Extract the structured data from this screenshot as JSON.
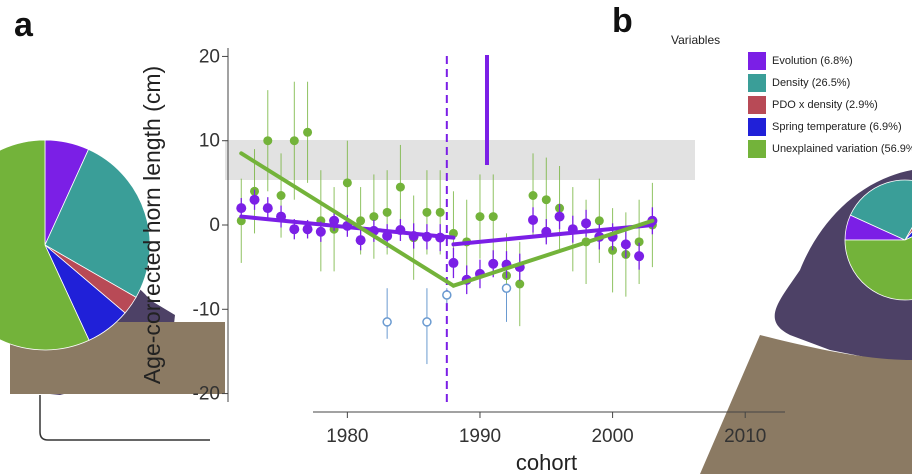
{
  "panel_labels": {
    "a": "a",
    "b": "b"
  },
  "legend": {
    "title": "Variables",
    "items": [
      {
        "label": "Evolution (6.8%)",
        "color": "#7b1fe6"
      },
      {
        "label": "Density (26.5%)",
        "color": "#3a9e98"
      },
      {
        "label": "PDO x density (2.9%)",
        "color": "#b84a56"
      },
      {
        "label": "Spring temperature (6.9%)",
        "color": "#2020d8"
      },
      {
        "label": "Unexplained variation (56.9%)",
        "color": "#73b33a"
      }
    ]
  },
  "chart_data": {
    "type": "scatter",
    "title": "",
    "xlabel": "cohort",
    "ylabel": "Age-corrected horn length (cm)",
    "xlim": [
      1971,
      2013
    ],
    "ylim": [
      -21,
      21
    ],
    "x_ticks": [
      1980,
      1990,
      2000,
      2010
    ],
    "y_ticks": [
      20,
      10,
      0,
      -10,
      -20
    ],
    "x_tick_labels": [
      "1980",
      "1990",
      "2000",
      "2010"
    ],
    "y_tick_labels": [
      "20",
      "10",
      "0",
      "-10",
      "-20"
    ],
    "legend_position": "top-right",
    "grid": false,
    "colors": {
      "evolution": "#7b1fe6",
      "phenotype": "#73b33a",
      "selection": "#6a9ad0",
      "break_line": "#7b1fe6"
    },
    "series": [
      {
        "name": "Evolution",
        "color": "#7b1fe6",
        "points": [
          [
            1972,
            2,
            1.2
          ],
          [
            1973,
            3,
            1.2
          ],
          [
            1974,
            2,
            1.3
          ],
          [
            1975,
            1,
            1.3
          ],
          [
            1976,
            -0.5,
            1.2
          ],
          [
            1977,
            -0.5,
            1.1
          ],
          [
            1978,
            -0.8,
            1.2
          ],
          [
            1979,
            0.5,
            1.2
          ],
          [
            1980,
            -0.1,
            1.3
          ],
          [
            1981,
            -1.8,
            1.2
          ],
          [
            1982,
            -0.7,
            1.3
          ],
          [
            1983,
            -1.3,
            1.4
          ],
          [
            1984,
            -0.6,
            1.3
          ],
          [
            1985,
            -1.3,
            1.5
          ],
          [
            1986,
            -1.4,
            1.5
          ],
          [
            1987,
            -1.5,
            1.6
          ],
          [
            1988,
            -4.5,
            1.8
          ],
          [
            1989,
            -6.5,
            1.7
          ],
          [
            1990,
            -5.8,
            1.7
          ],
          [
            1991,
            -4.6,
            1.6
          ],
          [
            1992,
            -4.7,
            1.6
          ],
          [
            1993,
            -5.0,
            1.6
          ],
          [
            1994,
            0.6,
            1.5
          ],
          [
            1995,
            -0.8,
            1.5
          ],
          [
            1996,
            1.0,
            1.5
          ],
          [
            1997,
            -0.5,
            1.6
          ],
          [
            1998,
            0.2,
            1.6
          ],
          [
            1999,
            -1.4,
            1.5
          ],
          [
            2000,
            -1.4,
            1.6
          ],
          [
            2001,
            -2.3,
            1.6
          ],
          [
            2002,
            -3.7,
            1.6
          ],
          [
            2003,
            0.5,
            1.6
          ]
        ]
      },
      {
        "name": "Phenotype",
        "color": "#73b33a",
        "points": [
          [
            1972,
            0.5,
            5
          ],
          [
            1973,
            4,
            5
          ],
          [
            1974,
            10,
            6
          ],
          [
            1975,
            3.5,
            5
          ],
          [
            1976,
            10,
            7
          ],
          [
            1977,
            11,
            6
          ],
          [
            1978,
            0.5,
            6
          ],
          [
            1979,
            -0.5,
            5
          ],
          [
            1980,
            5,
            5
          ],
          [
            1981,
            0.5,
            4
          ],
          [
            1982,
            1,
            5
          ],
          [
            1983,
            1.5,
            5
          ],
          [
            1984,
            4.5,
            5
          ],
          [
            1985,
            -1.5,
            5
          ],
          [
            1986,
            1.5,
            5
          ],
          [
            1987,
            1.5,
            5
          ],
          [
            1988,
            -1,
            5
          ],
          [
            1989,
            -2,
            5
          ],
          [
            1990,
            1,
            5
          ],
          [
            1991,
            1,
            5
          ],
          [
            1992,
            -6,
            5
          ],
          [
            1993,
            -7,
            5
          ],
          [
            1994,
            3.5,
            5
          ],
          [
            1995,
            3,
            5
          ],
          [
            1996,
            2,
            5
          ],
          [
            1997,
            -0.5,
            5
          ],
          [
            1998,
            -2,
            5
          ],
          [
            1999,
            0.5,
            5
          ],
          [
            2000,
            -3,
            5
          ],
          [
            2001,
            -3.5,
            5
          ],
          [
            2002,
            -2,
            5
          ],
          [
            2003,
            0,
            5
          ]
        ]
      }
    ],
    "trend_lines": [
      {
        "name": "Evolution trend 1",
        "color": "#7b1fe6",
        "points": [
          [
            1972,
            1.0
          ],
          [
            1988,
            -1.5
          ]
        ]
      },
      {
        "name": "Evolution trend 2",
        "color": "#7b1fe6",
        "points": [
          [
            1988,
            -2.3
          ],
          [
            2003,
            0.0
          ]
        ]
      },
      {
        "name": "Phenotype trend 1",
        "color": "#73b33a",
        "points": [
          [
            1972,
            8.5
          ],
          [
            1988,
            -7.2
          ]
        ]
      },
      {
        "name": "Phenotype trend 2",
        "color": "#73b33a",
        "points": [
          [
            1988,
            -7.2
          ],
          [
            2003,
            0.5
          ]
        ]
      }
    ],
    "breakpoint_x": 1987.5,
    "selection_markers": [
      {
        "x": 1983,
        "y": -11.5,
        "lo": -13.5,
        "hi": -7.5
      },
      {
        "x": 1986,
        "y": -11.5,
        "lo": -16.5,
        "hi": -7.5
      },
      {
        "x": 1987.5,
        "y": -8.3,
        "lo": -9.3,
        "hi": -7.5
      },
      {
        "x": 1992,
        "y": -7.5,
        "lo": -11.5,
        "hi": -7.0
      }
    ],
    "pie_charts": [
      {
        "name": "Panel a pie",
        "slices": [
          {
            "label": "Evolution",
            "value": 6.8,
            "color": "#7b1fe6"
          },
          {
            "label": "Density",
            "value": 26.5,
            "color": "#3a9e98"
          },
          {
            "label": "PDO x density",
            "value": 2.9,
            "color": "#b84a56"
          },
          {
            "label": "Spring temperature",
            "value": 6.9,
            "color": "#2020d8"
          },
          {
            "label": "Unexplained variation",
            "value": 56.9,
            "color": "#73b33a"
          }
        ]
      },
      {
        "name": "Panel b pie",
        "slices": [
          {
            "label": "Evolution",
            "value": 6.8,
            "color": "#7b1fe6"
          },
          {
            "label": "Density",
            "value": 26.5,
            "color": "#3a9e98"
          },
          {
            "label": "PDO x density",
            "value": 2.9,
            "color": "#b84a56"
          },
          {
            "label": "Spring temperature",
            "value": 6.9,
            "color": "#2020d8"
          },
          {
            "label": "Unexplained variation",
            "value": 56.9,
            "color": "#73b33a"
          }
        ]
      }
    ]
  }
}
